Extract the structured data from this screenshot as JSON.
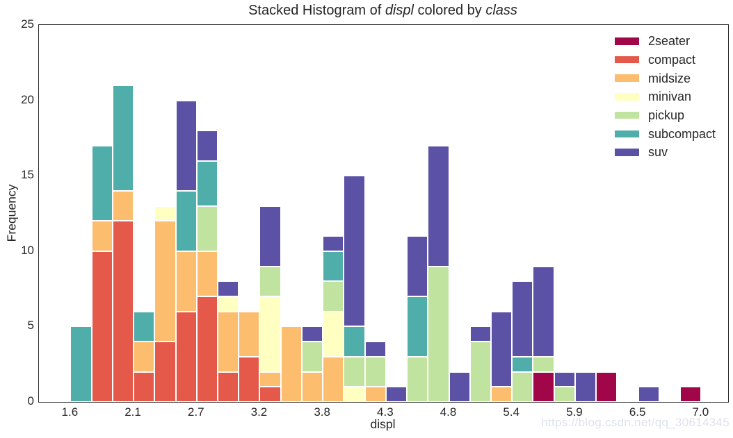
{
  "title": {
    "prefix": "Stacked Histogram of ",
    "var1": "displ",
    "middle": " colored by ",
    "var2": "class"
  },
  "x_axis": {
    "label": "displ",
    "ticks": [
      {
        "label": "1.6",
        "value": 1.6
      },
      {
        "label": "2.1",
        "value": 2.14
      },
      {
        "label": "2.7",
        "value": 2.68
      },
      {
        "label": "3.2",
        "value": 3.22
      },
      {
        "label": "3.8",
        "value": 3.76
      },
      {
        "label": "4.3",
        "value": 4.3
      },
      {
        "label": "4.8",
        "value": 4.84
      },
      {
        "label": "5.4",
        "value": 5.38
      },
      {
        "label": "5.9",
        "value": 5.92
      },
      {
        "label": "6.5",
        "value": 6.46
      },
      {
        "label": "7.0",
        "value": 7.0
      }
    ]
  },
  "y_axis": {
    "label": "Frequency",
    "ticks": [
      {
        "label": "0",
        "value": 0
      },
      {
        "label": "5",
        "value": 5
      },
      {
        "label": "10",
        "value": 10
      },
      {
        "label": "15",
        "value": 15
      },
      {
        "label": "20",
        "value": 20
      },
      {
        "label": "25",
        "value": 25
      }
    ]
  },
  "legend": {
    "position": "upper right",
    "entries": [
      {
        "label": "2seater",
        "color": "#a10649"
      },
      {
        "label": "compact",
        "color": "#e5594a"
      },
      {
        "label": "midsize",
        "color": "#fdbd6e"
      },
      {
        "label": "minivan",
        "color": "#feffc0"
      },
      {
        "label": "pickup",
        "color": "#c1e3a0"
      },
      {
        "label": "subcompact",
        "color": "#4fadaa"
      },
      {
        "label": "suv",
        "color": "#5c52a5"
      }
    ]
  },
  "watermark": "https://blog.csdn.net/qq_30614345",
  "chart_data": {
    "type": "bar",
    "subtype": "stacked-histogram",
    "title": "Stacked Histogram of displ colored by class",
    "xlabel": "displ",
    "ylabel": "Frequency",
    "xlim": [
      1.33,
      7.23
    ],
    "ylim": [
      0,
      25
    ],
    "grid": false,
    "legend_position": "upper right",
    "bar_edge_color": "#ffffff",
    "bin_edges": [
      1.6,
      1.78,
      1.96,
      2.14,
      2.32,
      2.5,
      2.68,
      2.86,
      3.04,
      3.22,
      3.4,
      3.58,
      3.76,
      3.94,
      4.12,
      4.3,
      4.48,
      4.66,
      4.84,
      5.02,
      5.2,
      5.38,
      5.56,
      5.74,
      5.92,
      6.1,
      6.28,
      6.46,
      6.64,
      6.82,
      7.0
    ],
    "series": [
      {
        "name": "2seater",
        "color": "#a10649",
        "values": [
          0,
          0,
          0,
          0,
          0,
          0,
          0,
          0,
          0,
          0,
          0,
          0,
          0,
          0,
          0,
          0,
          0,
          0,
          0,
          0,
          0,
          0,
          2,
          0,
          0,
          2,
          0,
          0,
          0,
          1
        ]
      },
      {
        "name": "compact",
        "color": "#e5594a",
        "values": [
          0,
          10,
          12,
          2,
          4,
          6,
          7,
          2,
          3,
          1,
          0,
          0,
          0,
          0,
          0,
          0,
          0,
          0,
          0,
          0,
          0,
          0,
          0,
          0,
          0,
          0,
          0,
          0,
          0,
          0
        ]
      },
      {
        "name": "midsize",
        "color": "#fdbd6e",
        "values": [
          0,
          2,
          2,
          2,
          8,
          4,
          3,
          4,
          3,
          1,
          5,
          2,
          3,
          0,
          1,
          0,
          0,
          0,
          0,
          0,
          1,
          0,
          0,
          0,
          0,
          0,
          0,
          0,
          0,
          0
        ]
      },
      {
        "name": "minivan",
        "color": "#feffc0",
        "values": [
          0,
          0,
          0,
          0,
          1,
          0,
          0,
          1,
          0,
          5,
          0,
          0,
          3,
          1,
          0,
          0,
          0,
          0,
          0,
          0,
          0,
          0,
          0,
          0,
          0,
          0,
          0,
          0,
          0,
          0
        ]
      },
      {
        "name": "pickup",
        "color": "#c1e3a0",
        "values": [
          0,
          0,
          0,
          0,
          0,
          0,
          3,
          0,
          0,
          2,
          0,
          2,
          2,
          2,
          2,
          0,
          3,
          9,
          0,
          4,
          0,
          2,
          1,
          1,
          0,
          0,
          0,
          0,
          0,
          0
        ]
      },
      {
        "name": "subcompact",
        "color": "#4fadaa",
        "values": [
          5,
          5,
          7,
          2,
          0,
          4,
          3,
          0,
          0,
          0,
          0,
          0,
          2,
          2,
          0,
          0,
          4,
          0,
          0,
          0,
          0,
          1,
          0,
          0,
          0,
          0,
          0,
          0,
          0,
          0
        ]
      },
      {
        "name": "suv",
        "color": "#5c52a5",
        "values": [
          0,
          0,
          0,
          0,
          0,
          6,
          2,
          1,
          0,
          4,
          0,
          1,
          1,
          10,
          1,
          1,
          4,
          8,
          2,
          1,
          5,
          5,
          6,
          1,
          2,
          0,
          0,
          1,
          0,
          0
        ]
      }
    ]
  }
}
